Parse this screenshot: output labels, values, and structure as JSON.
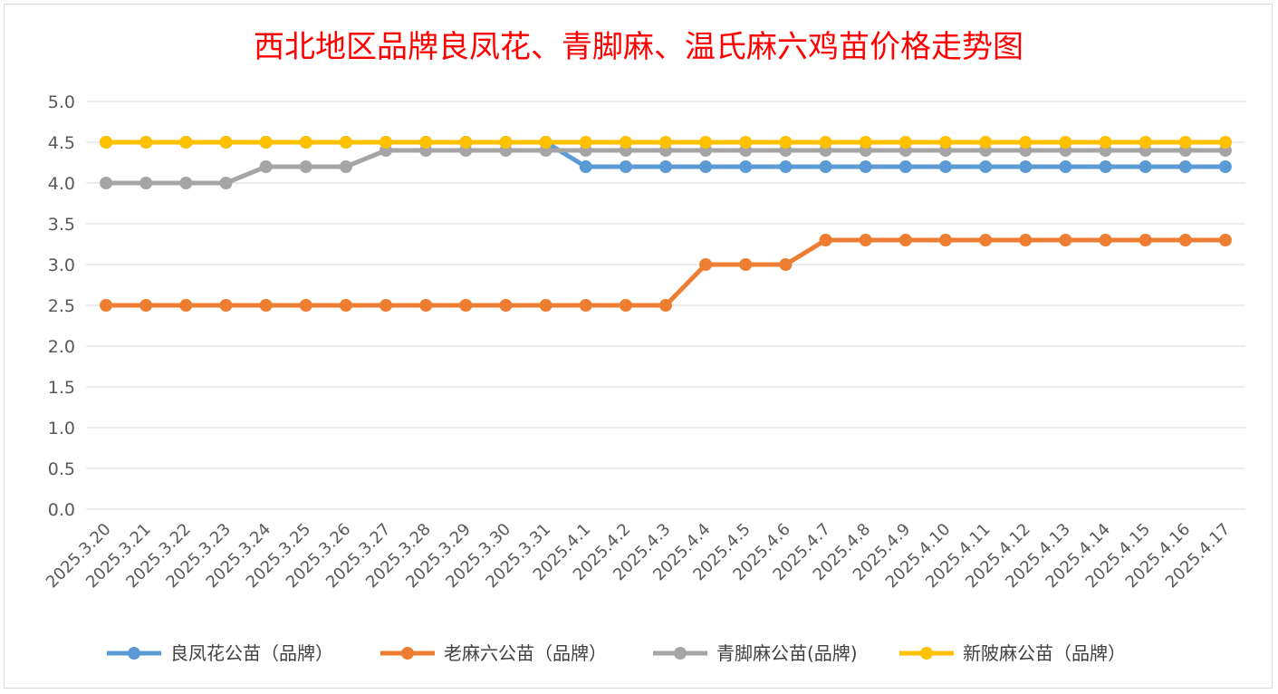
{
  "chart_data": {
    "type": "line",
    "title": "西北地区品牌良凤花、青脚麻、温氏麻六鸡苗价格走势图",
    "xlabel": "",
    "ylabel": "",
    "ylim": [
      0,
      5
    ],
    "yticks": [
      "0.0",
      "0.5",
      "1.0",
      "1.5",
      "2.0",
      "2.5",
      "3.0",
      "3.5",
      "4.0",
      "4.5",
      "5.0"
    ],
    "grid": true,
    "legend_position": "bottom",
    "categories": [
      "2025.3.20",
      "2025.3.21",
      "2025.3.22",
      "2025.3.23",
      "2025.3.24",
      "2025.3.25",
      "2025.3.26",
      "2025.3.27",
      "2025.3.28",
      "2025.3.29",
      "2025.3.30",
      "2025.3.31",
      "2025.4.1",
      "2025.4.2",
      "2025.4.3",
      "2025.4.4",
      "2025.4.5",
      "2025.4.6",
      "2025.4.7",
      "2025.4.8",
      "2025.4.9",
      "2025.4.10",
      "2025.4.11",
      "2025.4.12",
      "2025.4.13",
      "2025.4.14",
      "2025.4.15",
      "2025.4.16",
      "2025.4.17"
    ],
    "series": [
      {
        "name": "良凤花公苗（品牌）",
        "color": "#5b9bd5",
        "values": [
          4.5,
          4.5,
          4.5,
          4.5,
          4.5,
          4.5,
          4.5,
          4.5,
          4.5,
          4.5,
          4.5,
          4.5,
          4.2,
          4.2,
          4.2,
          4.2,
          4.2,
          4.2,
          4.2,
          4.2,
          4.2,
          4.2,
          4.2,
          4.2,
          4.2,
          4.2,
          4.2,
          4.2,
          4.2
        ]
      },
      {
        "name": "老麻六公苗（品牌）",
        "color": "#ed7d31",
        "values": [
          2.5,
          2.5,
          2.5,
          2.5,
          2.5,
          2.5,
          2.5,
          2.5,
          2.5,
          2.5,
          2.5,
          2.5,
          2.5,
          2.5,
          2.5,
          3.0,
          3.0,
          3.0,
          3.3,
          3.3,
          3.3,
          3.3,
          3.3,
          3.3,
          3.3,
          3.3,
          3.3,
          3.3,
          3.3
        ]
      },
      {
        "name": "青脚麻公苗(品牌)",
        "color": "#a5a5a5",
        "values": [
          4.0,
          4.0,
          4.0,
          4.0,
          4.2,
          4.2,
          4.2,
          4.4,
          4.4,
          4.4,
          4.4,
          4.4,
          4.4,
          4.4,
          4.4,
          4.4,
          4.4,
          4.4,
          4.4,
          4.4,
          4.4,
          4.4,
          4.4,
          4.4,
          4.4,
          4.4,
          4.4,
          4.4,
          4.4
        ]
      },
      {
        "name": "新陂麻公苗（品牌）",
        "color": "#ffc000",
        "values": [
          4.5,
          4.5,
          4.5,
          4.5,
          4.5,
          4.5,
          4.5,
          4.5,
          4.5,
          4.5,
          4.5,
          4.5,
          4.5,
          4.5,
          4.5,
          4.5,
          4.5,
          4.5,
          4.5,
          4.5,
          4.5,
          4.5,
          4.5,
          4.5,
          4.5,
          4.5,
          4.5,
          4.5,
          4.5
        ]
      }
    ]
  }
}
